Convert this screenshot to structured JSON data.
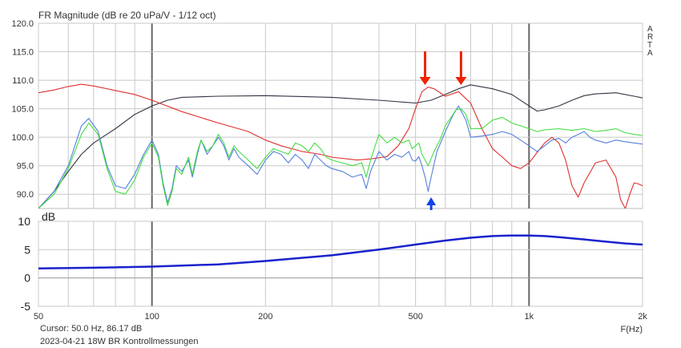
{
  "chart_data": [
    {
      "type": "line",
      "title": "FR Magnitude (dB re 20 uPa/V - 1/12 oct)",
      "side_label": [
        "A",
        "R",
        "T",
        "A"
      ],
      "x_scale": "log",
      "xlim": [
        50,
        2000
      ],
      "ylim": [
        87.5,
        120
      ],
      "yticks": [
        90.0,
        95.0,
        100.0,
        105.0,
        110.0,
        115.0,
        120.0
      ],
      "ytick_labels": [
        "90.0",
        "95.0",
        "100.0",
        "105.0",
        "110.0",
        "115.0",
        "120.0"
      ],
      "grid": true,
      "series": [
        {
          "color": "#333344",
          "points": [
            [
              50,
              87.5
            ],
            [
              55,
              90.5
            ],
            [
              60,
              94
            ],
            [
              65,
              97
            ],
            [
              70,
              99
            ],
            [
              80,
              101.5
            ],
            [
              90,
              104
            ],
            [
              100,
              105.5
            ],
            [
              110,
              106.5
            ],
            [
              120,
              107
            ],
            [
              150,
              107.2
            ],
            [
              200,
              107.3
            ],
            [
              300,
              107
            ],
            [
              400,
              106.5
            ],
            [
              500,
              106
            ],
            [
              550,
              106.5
            ],
            [
              600,
              107.5
            ],
            [
              650,
              108.5
            ],
            [
              700,
              109.2
            ],
            [
              800,
              108.5
            ],
            [
              900,
              107.5
            ],
            [
              1000,
              105.5
            ],
            [
              1050,
              104.6
            ],
            [
              1100,
              104.8
            ],
            [
              1200,
              105.5
            ],
            [
              1300,
              106.5
            ],
            [
              1400,
              107.3
            ],
            [
              1500,
              107.6
            ],
            [
              1700,
              107.8
            ],
            [
              1900,
              107.2
            ],
            [
              2000,
              106.9
            ]
          ]
        },
        {
          "color": "#e03030",
          "points": [
            [
              50,
              107.8
            ],
            [
              55,
              108.3
            ],
            [
              60,
              108.9
            ],
            [
              65,
              109.3
            ],
            [
              70,
              109
            ],
            [
              80,
              108.2
            ],
            [
              90,
              107.5
            ],
            [
              100,
              106.5
            ],
            [
              120,
              104.5
            ],
            [
              150,
              102.5
            ],
            [
              180,
              101
            ],
            [
              200,
              99.5
            ],
            [
              220,
              98.5
            ],
            [
              250,
              97.5
            ],
            [
              280,
              97
            ],
            [
              300,
              96.5
            ],
            [
              350,
              96
            ],
            [
              380,
              96.2
            ],
            [
              420,
              96.6
            ],
            [
              450,
              98.5
            ],
            [
              480,
              101.5
            ],
            [
              500,
              105
            ],
            [
              520,
              108
            ],
            [
              540,
              108.8
            ],
            [
              560,
              108.5
            ],
            [
              600,
              107.2
            ],
            [
              650,
              108
            ],
            [
              700,
              106
            ],
            [
              750,
              101.5
            ],
            [
              800,
              98
            ],
            [
              850,
              96.5
            ],
            [
              900,
              95
            ],
            [
              950,
              94.5
            ],
            [
              1000,
              95.5
            ],
            [
              1100,
              99
            ],
            [
              1150,
              100
            ],
            [
              1200,
              99
            ],
            [
              1250,
              96
            ],
            [
              1300,
              91.5
            ],
            [
              1350,
              89.5
            ],
            [
              1400,
              92
            ],
            [
              1500,
              95.5
            ],
            [
              1600,
              96
            ],
            [
              1700,
              93
            ],
            [
              1750,
              89
            ],
            [
              1800,
              87.5
            ],
            [
              1850,
              90
            ],
            [
              1900,
              92
            ],
            [
              1950,
              91.8
            ],
            [
              2000,
              91.5
            ]
          ]
        },
        {
          "color": "#5580dd",
          "points": [
            [
              50,
              87.5
            ],
            [
              55,
              90.5
            ],
            [
              60,
              95
            ],
            [
              65,
              102
            ],
            [
              68,
              103.3
            ],
            [
              72,
              101
            ],
            [
              76,
              95
            ],
            [
              80,
              91.5
            ],
            [
              85,
              91
            ],
            [
              90,
              93.5
            ],
            [
              95,
              97
            ],
            [
              100,
              99.5
            ],
            [
              104,
              97
            ],
            [
              107,
              92
            ],
            [
              110,
              88.5
            ],
            [
              113,
              91
            ],
            [
              116,
              95
            ],
            [
              120,
              94
            ],
            [
              125,
              96
            ],
            [
              128,
              93
            ],
            [
              132,
              97
            ],
            [
              135,
              99.5
            ],
            [
              140,
              97
            ],
            [
              145,
              98.5
            ],
            [
              150,
              100
            ],
            [
              155,
              98.5
            ],
            [
              160,
              96
            ],
            [
              165,
              98
            ],
            [
              170,
              96.5
            ],
            [
              180,
              95
            ],
            [
              190,
              93.5
            ],
            [
              200,
              96
            ],
            [
              210,
              97.5
            ],
            [
              220,
              97
            ],
            [
              230,
              95.5
            ],
            [
              240,
              97
            ],
            [
              250,
              96
            ],
            [
              260,
              94.5
            ],
            [
              270,
              97
            ],
            [
              280,
              96
            ],
            [
              290,
              95
            ],
            [
              300,
              94.5
            ],
            [
              320,
              94
            ],
            [
              340,
              93
            ],
            [
              360,
              93.5
            ],
            [
              370,
              91
            ],
            [
              380,
              94
            ],
            [
              400,
              97.5
            ],
            [
              420,
              96
            ],
            [
              440,
              97
            ],
            [
              460,
              96.5
            ],
            [
              480,
              97.5
            ],
            [
              490,
              96
            ],
            [
              500,
              95.8
            ],
            [
              510,
              96.6
            ],
            [
              520,
              95
            ],
            [
              530,
              93
            ],
            [
              540,
              90.5
            ],
            [
              550,
              93
            ],
            [
              570,
              97.5
            ],
            [
              600,
              101
            ],
            [
              630,
              104
            ],
            [
              650,
              105.5
            ],
            [
              680,
              103
            ],
            [
              700,
              100
            ],
            [
              750,
              100.2
            ],
            [
              800,
              100.5
            ],
            [
              850,
              101
            ],
            [
              900,
              100.5
            ],
            [
              950,
              99.5
            ],
            [
              1000,
              98.5
            ],
            [
              1050,
              97.5
            ],
            [
              1100,
              98.5
            ],
            [
              1150,
              99.5
            ],
            [
              1200,
              99.8
            ],
            [
              1250,
              99
            ],
            [
              1300,
              100
            ],
            [
              1350,
              100.5
            ],
            [
              1400,
              101
            ],
            [
              1450,
              100
            ],
            [
              1500,
              99.5
            ],
            [
              1600,
              99
            ],
            [
              1700,
              99.5
            ],
            [
              1800,
              99.2
            ],
            [
              1900,
              99
            ],
            [
              2000,
              98.8
            ]
          ]
        },
        {
          "color": "#44dd44",
          "points": [
            [
              50,
              87.5
            ],
            [
              55,
              90
            ],
            [
              60,
              94.5
            ],
            [
              65,
              100.5
            ],
            [
              68,
              102.5
            ],
            [
              72,
              100.5
            ],
            [
              76,
              94.5
            ],
            [
              80,
              90.5
            ],
            [
              85,
              90
            ],
            [
              90,
              92.5
            ],
            [
              95,
              96.5
            ],
            [
              100,
              99
            ],
            [
              104,
              96.5
            ],
            [
              107,
              91.5
            ],
            [
              110,
              88
            ],
            [
              113,
              90.5
            ],
            [
              116,
              94.5
            ],
            [
              120,
              93.5
            ],
            [
              125,
              96.5
            ],
            [
              128,
              93.5
            ],
            [
              132,
              97.5
            ],
            [
              135,
              99.5
            ],
            [
              140,
              97.5
            ],
            [
              145,
              98.5
            ],
            [
              150,
              100.5
            ],
            [
              155,
              99
            ],
            [
              160,
              96.5
            ],
            [
              165,
              98.5
            ],
            [
              170,
              97.5
            ],
            [
              180,
              96
            ],
            [
              190,
              94.5
            ],
            [
              200,
              96.5
            ],
            [
              210,
              98
            ],
            [
              220,
              97.5
            ],
            [
              230,
              97
            ],
            [
              240,
              99
            ],
            [
              250,
              98.5
            ],
            [
              260,
              97.5
            ],
            [
              270,
              99
            ],
            [
              280,
              98
            ],
            [
              290,
              96.5
            ],
            [
              300,
              96
            ],
            [
              320,
              95.5
            ],
            [
              340,
              95
            ],
            [
              360,
              95.5
            ],
            [
              370,
              93
            ],
            [
              380,
              96
            ],
            [
              400,
              100.5
            ],
            [
              420,
              99
            ],
            [
              440,
              100
            ],
            [
              460,
              99
            ],
            [
              480,
              99.5
            ],
            [
              490,
              98
            ],
            [
              500,
              98.5
            ],
            [
              510,
              99
            ],
            [
              520,
              97
            ],
            [
              540,
              95
            ],
            [
              560,
              97.5
            ],
            [
              580,
              99.5
            ],
            [
              600,
              102
            ],
            [
              640,
              104.8
            ],
            [
              660,
              105
            ],
            [
              680,
              104
            ],
            [
              700,
              101.5
            ],
            [
              750,
              101.5
            ],
            [
              800,
              103
            ],
            [
              850,
              103.5
            ],
            [
              900,
              102.5
            ],
            [
              950,
              102
            ],
            [
              1000,
              101.5
            ],
            [
              1050,
              101
            ],
            [
              1100,
              101.3
            ],
            [
              1200,
              101.5
            ],
            [
              1300,
              101.2
            ],
            [
              1400,
              101.5
            ],
            [
              1500,
              101
            ],
            [
              1600,
              101.2
            ],
            [
              1700,
              101.5
            ],
            [
              1800,
              100.8
            ],
            [
              1900,
              100.5
            ],
            [
              2000,
              100.3
            ]
          ]
        }
      ],
      "markers": [
        {
          "type": "arrow-down",
          "x": 530,
          "color": "#ee2200"
        },
        {
          "type": "arrow-down",
          "x": 660,
          "color": "#ee2200"
        },
        {
          "type": "arrow-up",
          "x": 550,
          "color": "#1144ee"
        }
      ]
    },
    {
      "type": "line",
      "ylabel": "dB",
      "x_scale": "log",
      "xlim": [
        50,
        2000
      ],
      "ylim": [
        -5,
        10
      ],
      "yticks": [
        -5,
        0,
        5,
        10
      ],
      "ytick_labels": [
        "-5",
        "0",
        "5",
        "10"
      ],
      "xticks": [
        50,
        100,
        200,
        500,
        1000,
        2000
      ],
      "xtick_labels": [
        "50",
        "100",
        "200",
        "500",
        "1k",
        "2k"
      ],
      "xlabel": "F(Hz)",
      "grid": true,
      "series": [
        {
          "color": "#1a22cc",
          "points": [
            [
              50,
              1.7
            ],
            [
              70,
              1.8
            ],
            [
              100,
              2.0
            ],
            [
              150,
              2.4
            ],
            [
              200,
              3.0
            ],
            [
              300,
              4.0
            ],
            [
              400,
              5.0
            ],
            [
              500,
              5.9
            ],
            [
              600,
              6.6
            ],
            [
              700,
              7.1
            ],
            [
              800,
              7.4
            ],
            [
              900,
              7.5
            ],
            [
              1000,
              7.5
            ],
            [
              1100,
              7.4
            ],
            [
              1200,
              7.2
            ],
            [
              1400,
              6.8
            ],
            [
              1600,
              6.4
            ],
            [
              1800,
              6.1
            ],
            [
              2000,
              5.9
            ]
          ]
        }
      ]
    }
  ],
  "status": {
    "cursor": "Cursor: 50.0 Hz, 86.17 dB",
    "caption": "2023-04-21 18W BR Kontrollmessungen"
  }
}
